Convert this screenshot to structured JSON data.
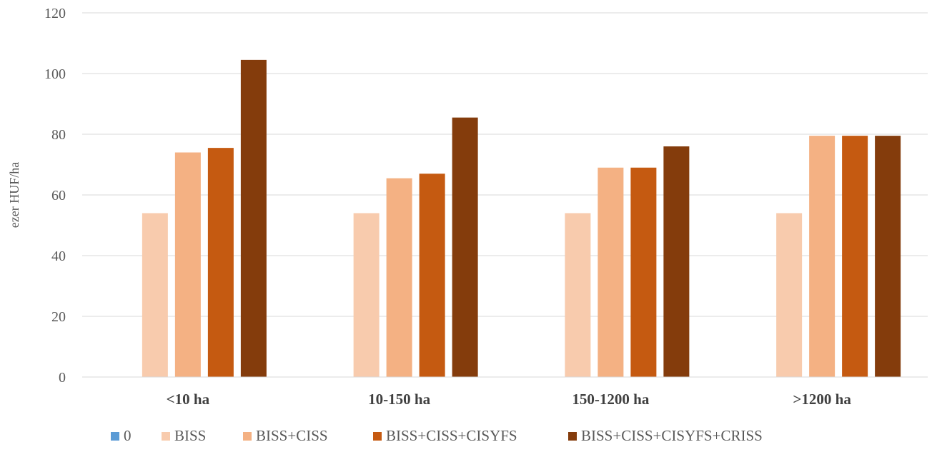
{
  "chart_data": {
    "type": "bar",
    "categories": [
      "<10 ha",
      "10-150 ha",
      "150-1200 ha",
      ">1200 ha"
    ],
    "series": [
      {
        "name": "0",
        "color": "#5b9bd5",
        "values": [
          0,
          0,
          0,
          0
        ]
      },
      {
        "name": "BISS",
        "color": "#f8cbad",
        "values": [
          54,
          54,
          54,
          54
        ]
      },
      {
        "name": "BISS+CISS",
        "color": "#f4b183",
        "values": [
          74,
          65.5,
          69,
          79.5
        ]
      },
      {
        "name": "BISS+CISS+CISYFS",
        "color": "#c55a11",
        "values": [
          75.5,
          67,
          69,
          79.5
        ]
      },
      {
        "name": "BISS+CISS+CISYFS+CRISS",
        "color": "#843c0c",
        "values": [
          104.5,
          85.5,
          76,
          79.5
        ]
      }
    ],
    "ylabel": "ezer HUF/ha",
    "ylim": [
      0,
      120
    ],
    "yticks": [
      "0",
      "20",
      "40",
      "60",
      "80",
      "100",
      "120"
    ],
    "grid": true,
    "legend_position": "bottom"
  }
}
